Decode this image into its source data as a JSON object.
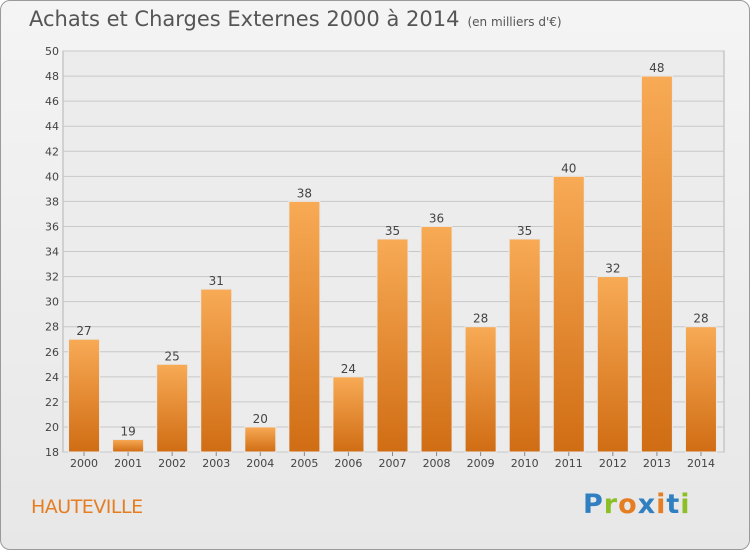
{
  "header": {
    "title": "Achats et Charges Externes 2000 à 2014",
    "unit": "(en milliers d'€)"
  },
  "location": "HAUTEVILLE",
  "logo": {
    "text": "Proxiti",
    "letters": [
      "P",
      "r",
      "o",
      "x",
      "i",
      "t",
      "i"
    ],
    "colors": [
      "#2f7fc1",
      "#8cbf26",
      "#e57e22",
      "#2f7fc1",
      "#e57e22",
      "#2f7fc1",
      "#8cbf26"
    ]
  },
  "colors": {
    "bar_top": "#f8aa55",
    "bar_bottom": "#d06d14",
    "location": "#e57e22"
  },
  "chart_data": {
    "type": "bar",
    "title": "Achats et Charges Externes 2000 à 2014",
    "subtitle": "(en milliers d'€)",
    "categories": [
      "2000",
      "2001",
      "2002",
      "2003",
      "2004",
      "2005",
      "2006",
      "2007",
      "2008",
      "2009",
      "2010",
      "2011",
      "2012",
      "2013",
      "2014"
    ],
    "values": [
      27,
      19,
      25,
      31,
      20,
      38,
      24,
      35,
      36,
      28,
      35,
      40,
      32,
      48,
      28
    ],
    "ylim": [
      18,
      50
    ],
    "yticks": [
      18,
      20,
      22,
      24,
      26,
      28,
      30,
      32,
      34,
      36,
      38,
      40,
      42,
      44,
      46,
      48,
      50
    ],
    "grid": true,
    "xlabel": "",
    "ylabel": ""
  }
}
